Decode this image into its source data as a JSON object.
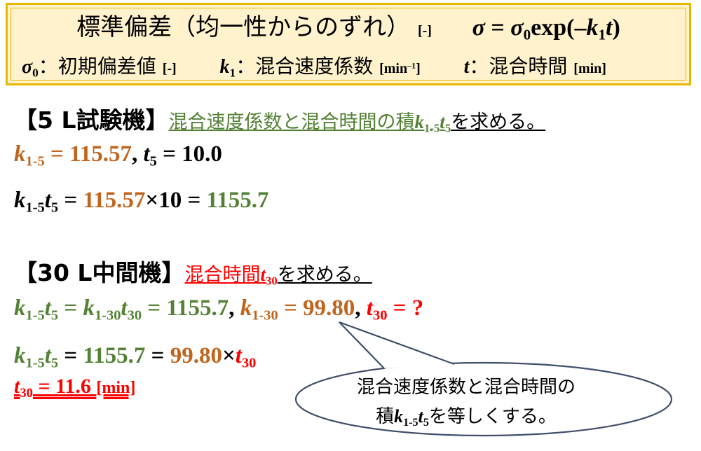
{
  "header": {
    "title": "標準偏差（均一性からのずれ）",
    "title_unit": "[-]",
    "formula_lhs": "σ",
    "formula_eq": " = ",
    "formula_sigma": "σ",
    "formula_sigma_sub": "0",
    "formula_exp": "exp(–",
    "formula_k": "k",
    "formula_k_sub": "1",
    "formula_t": "t",
    "formula_close": ")",
    "def1_sym": "σ",
    "def1_sub": "0",
    "def1_text": "：初期偏差値",
    "def1_unit": "[-]",
    "def2_sym": "k",
    "def2_sub": "1",
    "def2_text": "：混合速度係数",
    "def2_unit": "[min",
    "def2_unit_sup": "–1",
    "def2_unit_close": "]",
    "def3_sym": "t",
    "def3_text": "：混合時間",
    "def3_unit": "[min]"
  },
  "sec5": {
    "title": "【5 L試験機】",
    "task": "混合速度係数と混合時間の積",
    "task_k": "k",
    "task_k_sub": "1-5",
    "task_t": "t",
    "task_t_sub": "5",
    "task_end": "を求める。",
    "line1_k": "k",
    "line1_k_sub": "1-5",
    "line1_kval": " = 115.57",
    "line1_comma": ", ",
    "line1_t": "t",
    "line1_t_sub": "5",
    "line1_tval": " = 10.0",
    "line2_k": "k",
    "line2_k_sub": "1-5",
    "line2_t": "t",
    "line2_t_sub": "5",
    "line2_eq": " = ",
    "line2_a": "115.57",
    "line2_times": "×",
    "line2_b": "10",
    "line2_eq2": " = ",
    "line2_result": "1155.7"
  },
  "sec30": {
    "title": "【30 L中間機】",
    "task": "混合時間",
    "task_t": "t",
    "task_t_sub": "30",
    "task_end": "を求める。",
    "line1_k": "k",
    "line1_k_sub": "1-5",
    "line1_t": "t",
    "line1_t_sub": "5",
    "line1_eq": " = ",
    "line1_k2": "k",
    "line1_k2_sub": "1-30",
    "line1_t2": "t",
    "line1_t2_sub": "30",
    "line1_val": " = 1155.7",
    "line1_comma": ", ",
    "line1_k3": "k",
    "line1_k3_sub": "1-30",
    "line1_kval": " = 99.80",
    "line1_comma2": ", ",
    "line1_t3": "t",
    "line1_t3_sub": "30",
    "line1_q": " = ?",
    "line2_k": "k",
    "line2_k_sub": "1-5",
    "line2_t": "t",
    "line2_t_sub": "5",
    "line2_eq": " = ",
    "line2_a": "1155.7",
    "line2_eq2": " = ",
    "line2_b": "99.80",
    "line2_times": "×",
    "line2_t2": "t",
    "line2_t2_sub": "30",
    "result_t": "t",
    "result_t_sub": "30",
    "result_val": " = 11.6 ",
    "result_unit": "[min]"
  },
  "callout": {
    "line1": "混合速度係数と混合時間の",
    "line2_pre": "積",
    "line2_k": "k",
    "line2_k_sub": "1-5",
    "line2_t": "t",
    "line2_t_sub": "5",
    "line2_post": "を等しくする。"
  }
}
